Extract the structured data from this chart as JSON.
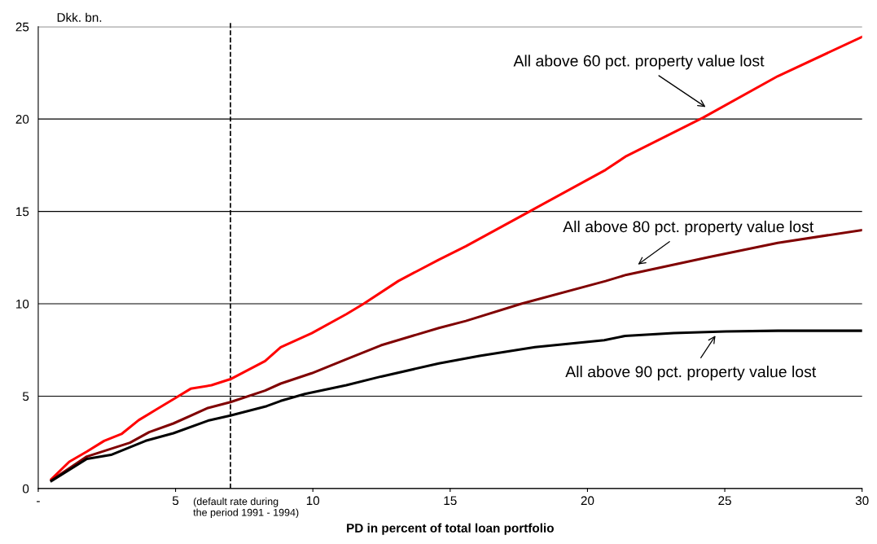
{
  "chart_data": {
    "type": "line",
    "xlabel": "PD in percent of total loan portfolio",
    "ylabel": "Dkk. bn.",
    "xlim": [
      0,
      30
    ],
    "xticks": [
      {
        "value": 0,
        "label": "-"
      },
      5,
      10,
      15,
      20,
      25,
      30
    ],
    "ylim": [
      0,
      25
    ],
    "yticks": [
      0,
      5,
      10,
      15,
      20,
      25
    ],
    "grid": "y",
    "marker": "none",
    "line_style": "solid",
    "series": [
      {
        "color": "#ff0000",
        "x": [
          0.48,
          1.13,
          1.77,
          2.4,
          3.03,
          3.66,
          4.29,
          4.92,
          5.55,
          6.31,
          7.0,
          8.26,
          8.83,
          9.96,
          11.22,
          11.85,
          13.11,
          14.59,
          15.57,
          17.88,
          20.66,
          21.42,
          24.2,
          26.93,
          30
        ],
        "values": [
          0.51,
          1.45,
          2.0,
          2.58,
          2.95,
          3.7,
          4.27,
          4.83,
          5.4,
          5.59,
          5.92,
          6.9,
          7.65,
          8.41,
          9.44,
          10.0,
          11.23,
          12.39,
          13.11,
          14.99,
          17.25,
          18.0,
          20.07,
          22.32,
          24.45
        ]
      },
      {
        "color": "#800000",
        "x": [
          0.48,
          1.77,
          3.34,
          4.04,
          4.92,
          6.18,
          7.0,
          8.26,
          8.83,
          9.96,
          11.22,
          12.48,
          14.59,
          15.57,
          17.59,
          20.66,
          21.42,
          24.45,
          26.93,
          30
        ],
        "values": [
          0.45,
          1.73,
          2.48,
          3.05,
          3.52,
          4.36,
          4.68,
          5.3,
          5.68,
          6.24,
          7.0,
          7.75,
          8.69,
          9.07,
          10.0,
          11.23,
          11.57,
          12.54,
          13.3,
          13.99
        ]
      },
      {
        "color": "#000000",
        "x": [
          0.48,
          1.77,
          2.65,
          3.91,
          4.92,
          6.18,
          7.0,
          8.32,
          8.83,
          9.71,
          11.22,
          12.48,
          14.59,
          16.07,
          18.09,
          20.61,
          21.37,
          23.14,
          25.03,
          26.93,
          30
        ],
        "values": [
          0.41,
          1.6,
          1.82,
          2.58,
          2.99,
          3.67,
          3.95,
          4.46,
          4.74,
          5.12,
          5.59,
          6.06,
          6.77,
          7.18,
          7.65,
          8.03,
          8.26,
          8.41,
          8.5,
          8.54,
          8.54
        ]
      }
    ],
    "ref_lines": [
      {
        "axis": "x",
        "value": 7.0,
        "label": "(default rate during\nthe period 1991 - 1994)",
        "color": "#000000",
        "line_style": "dashed"
      }
    ],
    "annotations": [
      "All above 60 pct. property value lost",
      "All above 80 pct. property value lost",
      "All above 90 pct. property value lost"
    ]
  }
}
